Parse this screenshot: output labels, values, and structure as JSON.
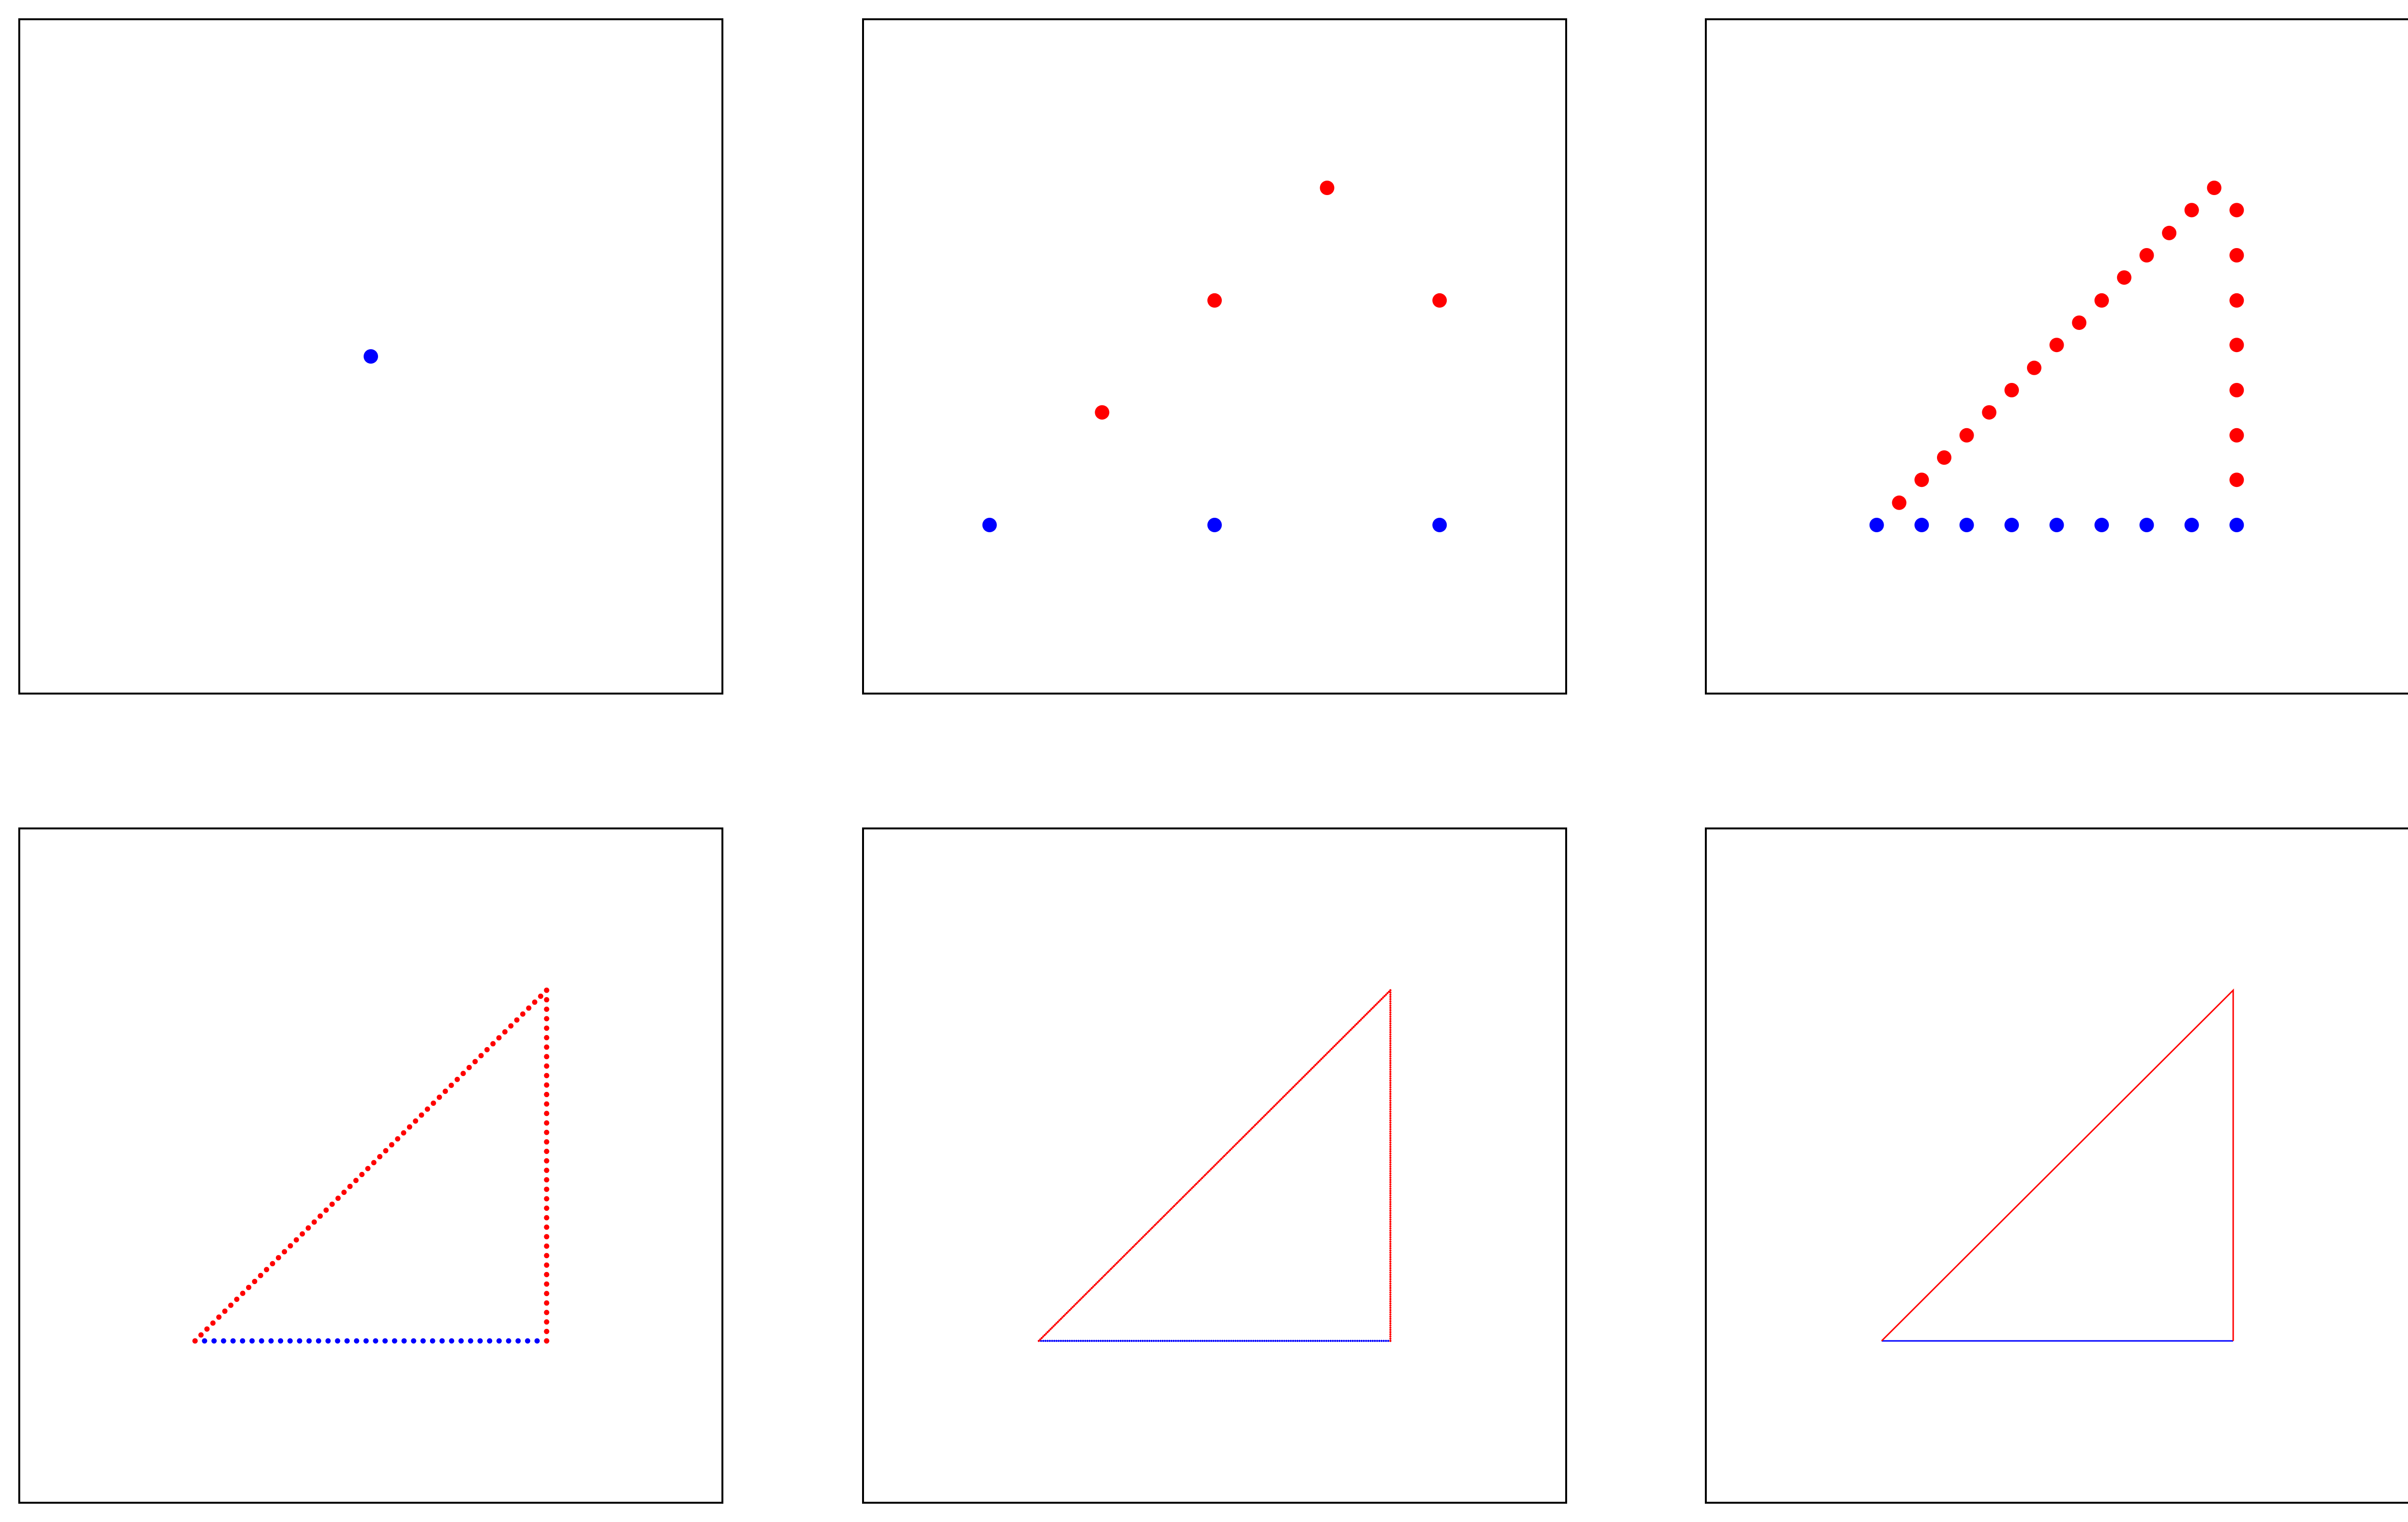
{
  "colors": {
    "base_points": "#0000ff",
    "upper_points": "#ff0000",
    "frame": "#000000",
    "background": "#ffffff"
  },
  "chart_data": [
    {
      "type": "scatter",
      "marker": "dot",
      "axes_visible": false,
      "grid": false,
      "xlim": [
        0,
        1
      ],
      "ylim": [
        0,
        1
      ],
      "series": [
        {
          "color": "#0000ff",
          "x": [
            0.5
          ],
          "y": [
            0.5
          ]
        }
      ]
    },
    {
      "type": "scatter",
      "marker": "dot",
      "axes_visible": false,
      "grid": false,
      "xlim": [
        0,
        1
      ],
      "ylim": [
        0,
        1
      ],
      "series": [
        {
          "color": "#0000ff",
          "x": [
            0.18,
            0.5,
            0.82
          ],
          "y": [
            0.25,
            0.25,
            0.25
          ]
        },
        {
          "color": "#ff0000",
          "x": [
            0.34,
            0.5,
            0.66,
            0.82
          ],
          "y": [
            0.417,
            0.583,
            0.75,
            0.583
          ]
        }
      ]
    },
    {
      "type": "scatter",
      "marker": "dot",
      "axes_visible": false,
      "grid": false,
      "xlim": [
        0,
        1
      ],
      "ylim": [
        0,
        1
      ],
      "series": [
        {
          "color": "#0000ff",
          "x": [
            0.243,
            0.307,
            0.371,
            0.435,
            0.499,
            0.563,
            0.627,
            0.691,
            0.755
          ],
          "y": [
            0.25,
            0.25,
            0.25,
            0.25,
            0.25,
            0.25,
            0.25,
            0.25,
            0.25
          ]
        },
        {
          "color": "#ff0000",
          "x": [
            0.275,
            0.307,
            0.339,
            0.371,
            0.403,
            0.435,
            0.467,
            0.499,
            0.531,
            0.563,
            0.595,
            0.627,
            0.659,
            0.691,
            0.723,
            0.755,
            0.755,
            0.755,
            0.755,
            0.755,
            0.755,
            0.755
          ],
          "y": [
            0.283,
            0.317,
            0.35,
            0.383,
            0.417,
            0.45,
            0.483,
            0.517,
            0.55,
            0.583,
            0.617,
            0.65,
            0.683,
            0.717,
            0.75,
            0.717,
            0.65,
            0.583,
            0.517,
            0.45,
            0.383,
            0.317
          ]
        }
      ]
    },
    {
      "type": "scatter",
      "marker": "dot",
      "axes_visible": false,
      "grid": false,
      "xlim": [
        0,
        1
      ],
      "ylim": [
        0,
        1
      ],
      "triangle": {
        "left_x": 0.25,
        "right_x": 0.75,
        "base_y": 0.24,
        "top_y": 0.76,
        "base_count": 38,
        "hyp_count": 60,
        "side_count": 38
      }
    },
    {
      "type": "scatter",
      "marker": "dot",
      "axes_visible": false,
      "grid": false,
      "xlim": [
        0,
        1
      ],
      "ylim": [
        0,
        1
      ],
      "triangle": {
        "left_x": 0.25,
        "right_x": 0.75,
        "base_y": 0.24,
        "top_y": 0.76,
        "base_count": 160,
        "hyp_count": 240,
        "side_count": 160
      }
    },
    {
      "type": "line",
      "axes_visible": false,
      "grid": false,
      "xlim": [
        0,
        1
      ],
      "ylim": [
        0,
        1
      ],
      "series": [
        {
          "color": "#0000ff",
          "x": [
            0.25,
            0.75
          ],
          "y": [
            0.24,
            0.24
          ]
        },
        {
          "color": "#ff0000",
          "x": [
            0.25,
            0.75,
            0.75
          ],
          "y": [
            0.24,
            0.76,
            0.24
          ]
        }
      ]
    }
  ]
}
